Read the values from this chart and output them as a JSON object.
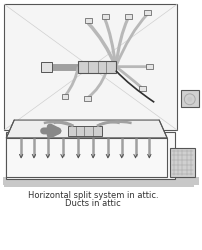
{
  "bg_color": "#ffffff",
  "light_gray": "#d0d0d0",
  "mid_gray": "#a0a0a0",
  "dark_gray": "#555555",
  "very_light": "#f5f5f5",
  "caption_line1": "Horizontal split system in attic.",
  "caption_line2": "Ducts in attic",
  "caption_fontsize": 6.0,
  "fig_width": 2.02,
  "fig_height": 2.5
}
